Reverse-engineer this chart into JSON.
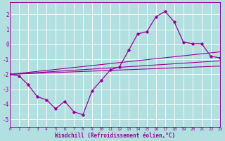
{
  "xlabel": "Windchill (Refroidissement éolien,°C)",
  "background_color": "#b2e0e0",
  "grid_color": "#ffffff",
  "line_color": "#990099",
  "xlim": [
    0,
    23
  ],
  "ylim": [
    -5.5,
    2.8
  ],
  "yticks": [
    -5,
    -4,
    -3,
    -2,
    -1,
    0,
    1,
    2
  ],
  "xticks": [
    0,
    1,
    2,
    3,
    4,
    5,
    6,
    7,
    8,
    9,
    10,
    11,
    12,
    13,
    14,
    15,
    16,
    17,
    18,
    19,
    20,
    21,
    22,
    23
  ],
  "main_x": [
    0,
    1,
    2,
    3,
    4,
    5,
    6,
    7,
    8,
    9,
    10,
    11,
    12,
    13,
    14,
    15,
    16,
    17,
    18,
    19,
    20,
    21,
    22,
    23
  ],
  "main_y": [
    -2.0,
    -2.1,
    -2.7,
    -3.5,
    -3.7,
    -4.3,
    -3.8,
    -4.5,
    -4.7,
    -3.1,
    -2.4,
    -1.7,
    -1.5,
    -0.4,
    0.7,
    0.85,
    1.85,
    2.2,
    1.5,
    0.15,
    0.05,
    0.05,
    -0.8,
    -0.9
  ],
  "linear_lines": [
    {
      "x": [
        0,
        23
      ],
      "y": [
        -2.0,
        -0.5
      ]
    },
    {
      "x": [
        0,
        23
      ],
      "y": [
        -2.0,
        -1.1
      ]
    },
    {
      "x": [
        0,
        23
      ],
      "y": [
        -2.0,
        -1.45
      ]
    }
  ]
}
